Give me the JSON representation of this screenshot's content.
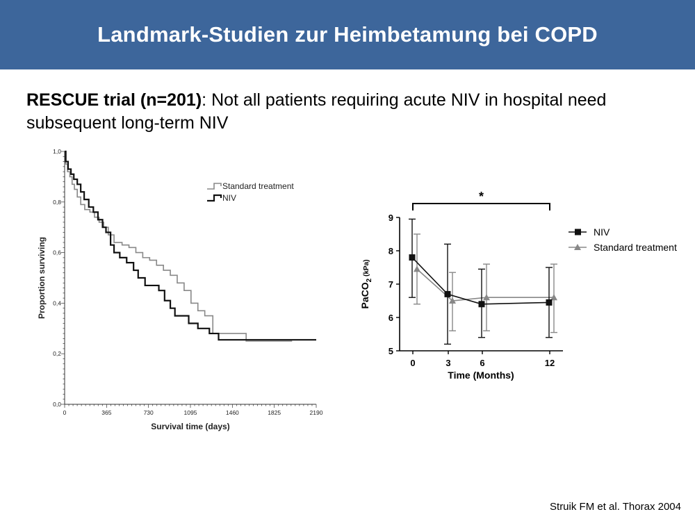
{
  "slide": {
    "title": "Landmark-Studien zur Heimbetamung bei COPD",
    "subtitle_bold": "RESCUE trial (n=201)",
    "subtitle_rest": ": Not all patients requiring acute NIV in hospital need subsequent long-term NIV",
    "citation": "Struik FM et al. Thorax 2004"
  },
  "colors": {
    "header_bg": "#3d669b",
    "niv": "#111111",
    "standard": "#888888"
  },
  "chart_data": [
    {
      "type": "line",
      "chart_style": "kaplan-meier step",
      "xlabel": "Survival time (days)",
      "ylabel": "Proportion surviving",
      "xlim": [
        0,
        2190
      ],
      "ylim": [
        0,
        1
      ],
      "x_ticks": [
        "0",
        "365",
        "730",
        "1095",
        "1460",
        "1825",
        "2190"
      ],
      "y_ticks": [
        "0,0",
        "0,2",
        "0,4",
        "0,6",
        "0,8",
        "1,0"
      ],
      "legend_position": "top-right",
      "series": [
        {
          "name": "Standard treatment",
          "color": "#888888",
          "points": [
            [
              0,
              1.0
            ],
            [
              10,
              0.95
            ],
            [
              25,
              0.92
            ],
            [
              45,
              0.9
            ],
            [
              65,
              0.87
            ],
            [
              85,
              0.85
            ],
            [
              110,
              0.82
            ],
            [
              140,
              0.79
            ],
            [
              175,
              0.77
            ],
            [
              220,
              0.76
            ],
            [
              260,
              0.74
            ],
            [
              300,
              0.72
            ],
            [
              340,
              0.7
            ],
            [
              380,
              0.67
            ],
            [
              430,
              0.64
            ],
            [
              500,
              0.63
            ],
            [
              560,
              0.62
            ],
            [
              620,
              0.6
            ],
            [
              680,
              0.58
            ],
            [
              740,
              0.57
            ],
            [
              800,
              0.55
            ],
            [
              860,
              0.53
            ],
            [
              920,
              0.51
            ],
            [
              980,
              0.48
            ],
            [
              1040,
              0.45
            ],
            [
              1100,
              0.4
            ],
            [
              1160,
              0.37
            ],
            [
              1220,
              0.35
            ],
            [
              1290,
              0.28
            ],
            [
              1580,
              0.25
            ],
            [
              1980,
              0.25
            ]
          ]
        },
        {
          "name": "NIV",
          "color": "#111111",
          "points": [
            [
              0,
              1.0
            ],
            [
              10,
              0.96
            ],
            [
              30,
              0.93
            ],
            [
              55,
              0.91
            ],
            [
              80,
              0.89
            ],
            [
              110,
              0.87
            ],
            [
              140,
              0.84
            ],
            [
              170,
              0.81
            ],
            [
              210,
              0.78
            ],
            [
              250,
              0.76
            ],
            [
              290,
              0.73
            ],
            [
              330,
              0.7
            ],
            [
              360,
              0.68
            ],
            [
              400,
              0.63
            ],
            [
              430,
              0.6
            ],
            [
              480,
              0.58
            ],
            [
              540,
              0.56
            ],
            [
              600,
              0.53
            ],
            [
              640,
              0.5
            ],
            [
              700,
              0.47
            ],
            [
              820,
              0.45
            ],
            [
              870,
              0.41
            ],
            [
              920,
              0.38
            ],
            [
              960,
              0.35
            ],
            [
              1080,
              0.32
            ],
            [
              1160,
              0.3
            ],
            [
              1260,
              0.28
            ],
            [
              1340,
              0.255
            ],
            [
              2190,
              0.255
            ]
          ]
        }
      ]
    },
    {
      "type": "line",
      "chart_style": "mean with error bars",
      "xlabel": "Time (Months)",
      "ylabel_main": "PaCO",
      "ylabel_sub": "2",
      "ylabel_unit": "(kPa)",
      "x_ticks": [
        "0",
        "3",
        "6",
        "12"
      ],
      "x_values": [
        0,
        3,
        6,
        12
      ],
      "ylim": [
        5,
        9
      ],
      "y_ticks": [
        "5",
        "6",
        "7",
        "8",
        "9"
      ],
      "significance": "*",
      "legend_position": "right",
      "series": [
        {
          "name": "NIV",
          "color": "#111111",
          "marker": "square",
          "values": [
            7.8,
            6.7,
            6.4,
            6.45
          ],
          "err_low": [
            6.6,
            5.2,
            5.4,
            5.4
          ],
          "err_high": [
            8.95,
            8.2,
            7.45,
            7.5
          ]
        },
        {
          "name": "Standard treatment",
          "color": "#888888",
          "marker": "triangle",
          "values": [
            7.45,
            6.5,
            6.6,
            6.6
          ],
          "err_low": [
            6.4,
            5.6,
            5.6,
            5.55
          ],
          "err_high": [
            8.5,
            7.35,
            7.6,
            7.6
          ]
        }
      ]
    }
  ]
}
